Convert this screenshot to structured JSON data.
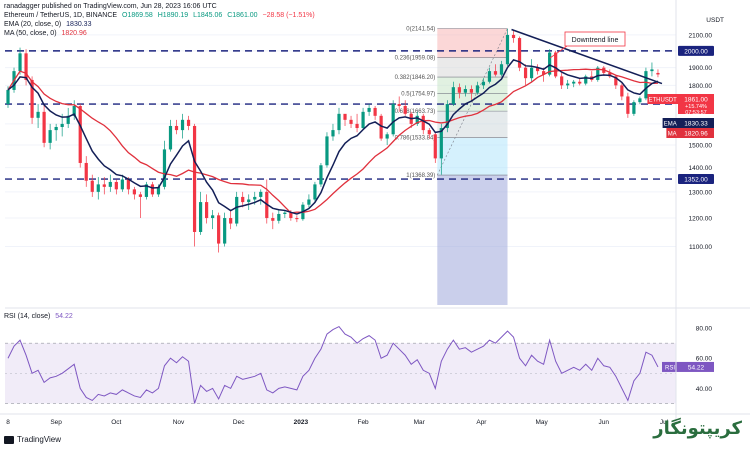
{
  "header": {
    "publisher": "ranadagger published on TradingView.com, Jun 28, 2023 16:06 UTC",
    "symbol": "Ethereum / TetherUS, 1D, BINANCE",
    "ohlc": [
      "O1869.58",
      "H1890.19",
      "L1845.06",
      "C1861.00",
      "−28.58 (−1.51%)"
    ],
    "ema_label": "EMA (20, close, 0)",
    "ema_value": "1830.33",
    "ma_label": "MA (50, close, 0)",
    "ma_value": "1820.96",
    "rsi_label": "RSI (14, close)",
    "rsi_value": "54.22"
  },
  "footer": {
    "brand": "TradingView"
  },
  "watermark": "کریپتونگار",
  "colors": {
    "candle_up": "#089981",
    "candle_down": "#f23645",
    "ema": "#131f57",
    "ma": "#e0313d",
    "level_line": "#1a237e",
    "trend_line": "#131f57",
    "rsi": "#7e57c2",
    "rsi_band": "#ede7f6"
  },
  "chart_data": [
    {
      "type": "candlestick",
      "title": "Ethereum / TetherUS, 1D, BINANCE",
      "currency": "USDT",
      "y_scale": "log",
      "ylim": [
        920,
        2280
      ],
      "y_ticks": [
        1100,
        1200,
        1300,
        1400,
        1500,
        1600,
        1700,
        1800,
        1900,
        2000,
        2100
      ],
      "x_ticks": [
        "8",
        "Sep",
        "Oct",
        "Nov",
        "Dec",
        "2023",
        "Feb",
        "Mar",
        "Apr",
        "May",
        "Jun",
        "Jul"
      ],
      "horizontal_levels": [
        {
          "value": 2000,
          "label": "2000.00"
        },
        {
          "value": 1700,
          "label": "1700.00"
        },
        {
          "value": 1352,
          "label": "1352.00"
        }
      ],
      "price_tags": [
        {
          "label": "ETHUSDT",
          "value": "1861.00",
          "sub": [
            "+15.74%",
            "07:53:57"
          ],
          "color": "#f23645"
        },
        {
          "label": "EMA",
          "value": "1830.33",
          "color": "#131f57"
        },
        {
          "label": "MA",
          "value": "1820.96",
          "color": "#e0313d"
        }
      ],
      "fibonacci": [
        {
          "ratio": "0",
          "price": "2141.54"
        },
        {
          "ratio": "0.236",
          "price": "1959.08"
        },
        {
          "ratio": "0.382",
          "price": "1846.20"
        },
        {
          "ratio": "0.5",
          "price": "1754.97"
        },
        {
          "ratio": "0.618",
          "price": "1663.73"
        },
        {
          "ratio": "0.786",
          "price": "1533.84"
        },
        {
          "ratio": "1",
          "price": "1368.39"
        }
      ],
      "annotation": "Downtrend line",
      "candles": [
        [
          "2022-08-08",
          1700,
          1795,
          1680,
          1775
        ],
        [
          "2022-08-11",
          1775,
          1900,
          1760,
          1880
        ],
        [
          "2022-08-14",
          1880,
          2020,
          1860,
          1985
        ],
        [
          "2022-08-17",
          1985,
          2010,
          1800,
          1830
        ],
        [
          "2022-08-20",
          1830,
          1850,
          1600,
          1630
        ],
        [
          "2022-08-23",
          1630,
          1700,
          1580,
          1660
        ],
        [
          "2022-08-26",
          1660,
          1700,
          1490,
          1510
        ],
        [
          "2022-08-29",
          1510,
          1600,
          1480,
          1570
        ],
        [
          "2022-09-01",
          1570,
          1600,
          1520,
          1585
        ],
        [
          "2022-09-04",
          1585,
          1650,
          1540,
          1600
        ],
        [
          "2022-09-07",
          1600,
          1680,
          1580,
          1640
        ],
        [
          "2022-09-10",
          1640,
          1720,
          1620,
          1690
        ],
        [
          "2022-09-13",
          1690,
          1700,
          1400,
          1420
        ],
        [
          "2022-09-16",
          1420,
          1450,
          1320,
          1345
        ],
        [
          "2022-09-19",
          1345,
          1370,
          1280,
          1300
        ],
        [
          "2022-09-22",
          1300,
          1360,
          1270,
          1330
        ],
        [
          "2022-09-25",
          1330,
          1360,
          1290,
          1320
        ],
        [
          "2022-09-28",
          1320,
          1370,
          1300,
          1340
        ],
        [
          "2022-10-01",
          1340,
          1350,
          1290,
          1310
        ],
        [
          "2022-10-04",
          1310,
          1370,
          1300,
          1350
        ],
        [
          "2022-10-07",
          1350,
          1360,
          1290,
          1310
        ],
        [
          "2022-10-10",
          1310,
          1320,
          1270,
          1290
        ],
        [
          "2022-10-13",
          1290,
          1300,
          1200,
          1280
        ],
        [
          "2022-10-16",
          1280,
          1340,
          1270,
          1330
        ],
        [
          "2022-10-19",
          1330,
          1340,
          1280,
          1290
        ],
        [
          "2022-10-22",
          1290,
          1330,
          1280,
          1320
        ],
        [
          "2022-10-25",
          1320,
          1520,
          1310,
          1480
        ],
        [
          "2022-10-28",
          1480,
          1620,
          1470,
          1590
        ],
        [
          "2022-10-31",
          1590,
          1620,
          1550,
          1570
        ],
        [
          "2022-11-03",
          1570,
          1650,
          1530,
          1620
        ],
        [
          "2022-11-06",
          1620,
          1640,
          1570,
          1590
        ],
        [
          "2022-11-09",
          1590,
          1600,
          1100,
          1150
        ],
        [
          "2022-11-12",
          1150,
          1300,
          1140,
          1260
        ],
        [
          "2022-11-15",
          1260,
          1290,
          1180,
          1200
        ],
        [
          "2022-11-18",
          1200,
          1230,
          1160,
          1210
        ],
        [
          "2022-11-21",
          1210,
          1220,
          1080,
          1110
        ],
        [
          "2022-11-24",
          1110,
          1220,
          1100,
          1200
        ],
        [
          "2022-11-27",
          1200,
          1230,
          1160,
          1180
        ],
        [
          "2022-11-30",
          1180,
          1300,
          1170,
          1280
        ],
        [
          "2022-12-03",
          1280,
          1300,
          1240,
          1260
        ],
        [
          "2022-12-06",
          1260,
          1290,
          1230,
          1270
        ],
        [
          "2022-12-09",
          1270,
          1300,
          1250,
          1280
        ],
        [
          "2022-12-12",
          1280,
          1310,
          1250,
          1300
        ],
        [
          "2022-12-15",
          1300,
          1350,
          1180,
          1200
        ],
        [
          "2022-12-18",
          1200,
          1220,
          1160,
          1190
        ],
        [
          "2022-12-21",
          1190,
          1230,
          1180,
          1215
        ],
        [
          "2022-12-24",
          1215,
          1230,
          1200,
          1220
        ],
        [
          "2022-12-27",
          1220,
          1230,
          1190,
          1200
        ],
        [
          "2022-12-30",
          1200,
          1210,
          1185,
          1196
        ],
        [
          "2023-01-02",
          1196,
          1260,
          1190,
          1250
        ],
        [
          "2023-01-05",
          1250,
          1290,
          1240,
          1270
        ],
        [
          "2023-01-08",
          1270,
          1340,
          1260,
          1330
        ],
        [
          "2023-01-11",
          1330,
          1420,
          1320,
          1410
        ],
        [
          "2023-01-14",
          1410,
          1560,
          1400,
          1540
        ],
        [
          "2023-01-17",
          1540,
          1600,
          1520,
          1570
        ],
        [
          "2023-01-20",
          1570,
          1680,
          1550,
          1650
        ],
        [
          "2023-01-23",
          1650,
          1640,
          1590,
          1620
        ],
        [
          "2023-01-26",
          1620,
          1640,
          1580,
          1600
        ],
        [
          "2023-01-29",
          1600,
          1650,
          1560,
          1580
        ],
        [
          "2023-02-01",
          1580,
          1680,
          1570,
          1660
        ],
        [
          "2023-02-04",
          1660,
          1700,
          1640,
          1680
        ],
        [
          "2023-02-07",
          1680,
          1690,
          1620,
          1640
        ],
        [
          "2023-02-10",
          1640,
          1650,
          1520,
          1530
        ],
        [
          "2023-02-13",
          1530,
          1560,
          1500,
          1550
        ],
        [
          "2023-02-16",
          1550,
          1720,
          1540,
          1700
        ],
        [
          "2023-02-19",
          1700,
          1740,
          1660,
          1690
        ],
        [
          "2023-02-22",
          1690,
          1720,
          1640,
          1650
        ],
        [
          "2023-02-25",
          1650,
          1660,
          1580,
          1600
        ],
        [
          "2023-02-28",
          1600,
          1660,
          1590,
          1640
        ],
        [
          "2023-03-03",
          1640,
          1650,
          1550,
          1570
        ],
        [
          "2023-03-06",
          1570,
          1580,
          1530,
          1550
        ],
        [
          "2023-03-09",
          1550,
          1560,
          1420,
          1440
        ],
        [
          "2023-03-12",
          1440,
          1600,
          1370,
          1580
        ],
        [
          "2023-03-15",
          1580,
          1720,
          1560,
          1700
        ],
        [
          "2023-03-18",
          1700,
          1820,
          1690,
          1790
        ],
        [
          "2023-03-21",
          1790,
          1810,
          1730,
          1760
        ],
        [
          "2023-03-24",
          1760,
          1800,
          1740,
          1780
        ],
        [
          "2023-03-27",
          1780,
          1800,
          1720,
          1760
        ],
        [
          "2023-03-30",
          1760,
          1820,
          1750,
          1800
        ],
        [
          "2023-04-02",
          1800,
          1840,
          1780,
          1820
        ],
        [
          "2023-04-05",
          1820,
          1900,
          1810,
          1880
        ],
        [
          "2023-04-08",
          1880,
          1920,
          1850,
          1860
        ],
        [
          "2023-04-11",
          1860,
          1940,
          1850,
          1920
        ],
        [
          "2023-04-14",
          1920,
          2140,
          1910,
          2100
        ],
        [
          "2023-04-17",
          2100,
          2130,
          2050,
          2080
        ],
        [
          "2023-04-20",
          2080,
          2090,
          1880,
          1900
        ],
        [
          "2023-04-23",
          1900,
          1920,
          1800,
          1840
        ],
        [
          "2023-04-26",
          1840,
          1950,
          1820,
          1900
        ],
        [
          "2023-04-29",
          1900,
          1920,
          1860,
          1880
        ],
        [
          "2023-05-02",
          1880,
          1900,
          1820,
          1860
        ],
        [
          "2023-05-05",
          1860,
          2010,
          1850,
          1990
        ],
        [
          "2023-05-08",
          1990,
          2000,
          1840,
          1850
        ],
        [
          "2023-05-11",
          1850,
          1870,
          1780,
          1800
        ],
        [
          "2023-05-14",
          1800,
          1830,
          1780,
          1810
        ],
        [
          "2023-05-17",
          1810,
          1830,
          1790,
          1820
        ],
        [
          "2023-05-20",
          1820,
          1840,
          1800,
          1810
        ],
        [
          "2023-05-23",
          1810,
          1860,
          1800,
          1850
        ],
        [
          "2023-05-26",
          1850,
          1880,
          1820,
          1830
        ],
        [
          "2023-05-29",
          1830,
          1910,
          1820,
          1900
        ],
        [
          "2023-06-01",
          1900,
          1910,
          1860,
          1870
        ],
        [
          "2023-06-04",
          1870,
          1890,
          1840,
          1850
        ],
        [
          "2023-06-07",
          1850,
          1860,
          1780,
          1800
        ],
        [
          "2023-06-10",
          1800,
          1810,
          1720,
          1740
        ],
        [
          "2023-06-13",
          1740,
          1760,
          1630,
          1650
        ],
        [
          "2023-06-16",
          1650,
          1720,
          1640,
          1710
        ],
        [
          "2023-06-19",
          1710,
          1740,
          1700,
          1730
        ],
        [
          "2023-06-22",
          1730,
          1900,
          1720,
          1880
        ],
        [
          "2023-06-25",
          1880,
          1930,
          1850,
          1890
        ],
        [
          "2023-06-28",
          1869.58,
          1890.19,
          1845.06,
          1861
        ]
      ]
    },
    {
      "type": "line",
      "title": "RSI (14, close)",
      "ylim": [
        25,
        92
      ],
      "y_ticks": [
        40,
        60,
        80
      ],
      "levels": [
        70,
        30
      ],
      "series": [
        {
          "name": "RSI",
          "values": [
            60,
            68,
            72,
            62,
            50,
            52,
            44,
            47,
            48,
            50,
            53,
            56,
            40,
            34,
            32,
            36,
            35,
            37,
            36,
            39,
            37,
            35,
            34,
            39,
            37,
            40,
            55,
            60,
            57,
            61,
            58,
            30,
            42,
            38,
            40,
            33,
            42,
            40,
            48,
            46,
            47,
            48,
            50,
            39,
            37,
            40,
            41,
            40,
            39,
            48,
            52,
            60,
            66,
            76,
            79,
            81,
            76,
            74,
            70,
            73,
            75,
            72,
            60,
            62,
            70,
            66,
            62,
            56,
            59,
            52,
            50,
            40,
            58,
            66,
            72,
            66,
            67,
            64,
            66,
            68,
            72,
            70,
            74,
            78,
            74,
            60,
            55,
            62,
            58,
            56,
            72,
            58,
            50,
            52,
            54,
            52,
            56,
            52,
            60,
            55,
            54,
            48,
            40,
            32,
            45,
            50,
            64,
            62,
            54.22
          ]
        }
      ]
    }
  ]
}
